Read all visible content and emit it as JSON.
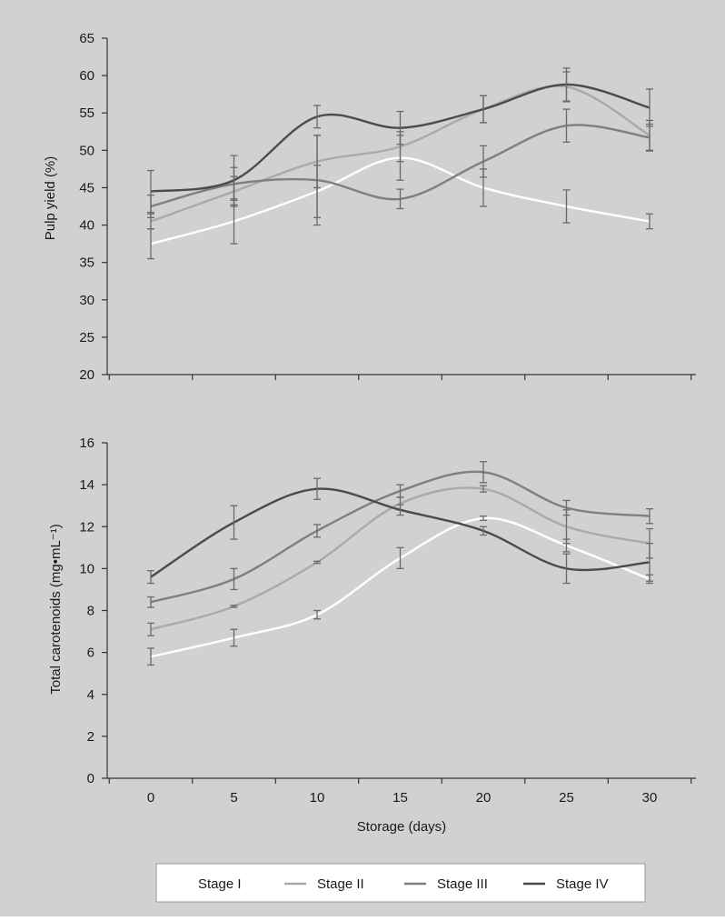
{
  "chart_data": [
    {
      "type": "line",
      "ylabel": "Pulp yield (%)",
      "xlabel": "",
      "x": [
        0,
        5,
        10,
        15,
        20,
        25,
        30
      ],
      "ylim": [
        20,
        65
      ],
      "yticks": [
        20,
        25,
        30,
        35,
        40,
        45,
        50,
        55,
        60,
        65
      ],
      "xticks": [],
      "series": [
        {
          "name": "Stage I",
          "color": "#ffffff",
          "values": [
            37.5,
            40.5,
            44.5,
            49,
            45,
            42.5,
            40.5
          ],
          "errors": [
            2,
            3,
            3.5,
            3,
            2.5,
            2.2,
            1
          ]
        },
        {
          "name": "Stage II",
          "color": "#aaaaaa",
          "values": [
            40.5,
            44.5,
            48.5,
            50.5,
            55.5,
            58.5,
            52
          ],
          "errors": [
            1,
            2,
            3.5,
            2,
            1.8,
            2,
            2
          ]
        },
        {
          "name": "Stage III",
          "color": "#7f7f7f",
          "values": [
            42.5,
            45.5,
            46,
            43.5,
            48.5,
            53.3,
            51.7
          ],
          "errors": [
            1.5,
            2.2,
            6,
            1.3,
            2.1,
            2.2,
            1.8
          ]
        },
        {
          "name": "Stage IV",
          "color": "#4b4b4b",
          "values": [
            44.5,
            46,
            54.5,
            53,
            55.5,
            58.8,
            55.7
          ],
          "errors": [
            2.8,
            3.3,
            1.5,
            2.2,
            1.8,
            2.2,
            2.5
          ]
        }
      ]
    },
    {
      "type": "line",
      "ylabel": "Total carotenoids (mg•mL⁻¹)",
      "xlabel": "Storage (days)",
      "x": [
        0,
        5,
        10,
        15,
        20,
        25,
        30
      ],
      "ylim": [
        0,
        16
      ],
      "yticks": [
        0,
        2,
        4,
        6,
        8,
        10,
        12,
        14,
        16
      ],
      "xticks": [
        "0",
        "5",
        "10",
        "15",
        "20",
        "25",
        "30"
      ],
      "series": [
        {
          "name": "Stage I",
          "color": "#ffffff",
          "values": [
            5.8,
            6.7,
            7.8,
            10.5,
            12.4,
            11.1,
            9.5
          ],
          "errors": [
            0.4,
            0.4,
            0.2,
            0.5,
            0.1,
            0.3,
            0.2
          ]
        },
        {
          "name": "Stage II",
          "color": "#aaaaaa",
          "values": [
            7.1,
            8.2,
            10.3,
            13.1,
            13.8,
            12.0,
            11.2
          ],
          "errors": [
            0.3,
            0.05,
            0.05,
            0.3,
            0.15,
            0.8,
            0.7
          ]
        },
        {
          "name": "Stage III",
          "color": "#7f7f7f",
          "values": [
            8.4,
            9.5,
            11.8,
            13.7,
            14.6,
            12.9,
            12.5
          ],
          "errors": [
            0.25,
            0.5,
            0.3,
            0.3,
            0.5,
            0.35,
            0.35
          ]
        },
        {
          "name": "Stage IV",
          "color": "#4b4b4b",
          "values": [
            9.6,
            12.2,
            13.8,
            12.8,
            11.8,
            10.0,
            10.3
          ],
          "errors": [
            0.3,
            0.8,
            0.5,
            0.25,
            0.2,
            0.7,
            0.9
          ]
        }
      ]
    }
  ],
  "legend": {
    "items": [
      {
        "label": "Stage I",
        "color": "#ffffff"
      },
      {
        "label": "Stage II",
        "color": "#aaaaaa"
      },
      {
        "label": "Stage III",
        "color": "#7f7f7f"
      },
      {
        "label": "Stage IV",
        "color": "#4b4b4b"
      }
    ]
  }
}
